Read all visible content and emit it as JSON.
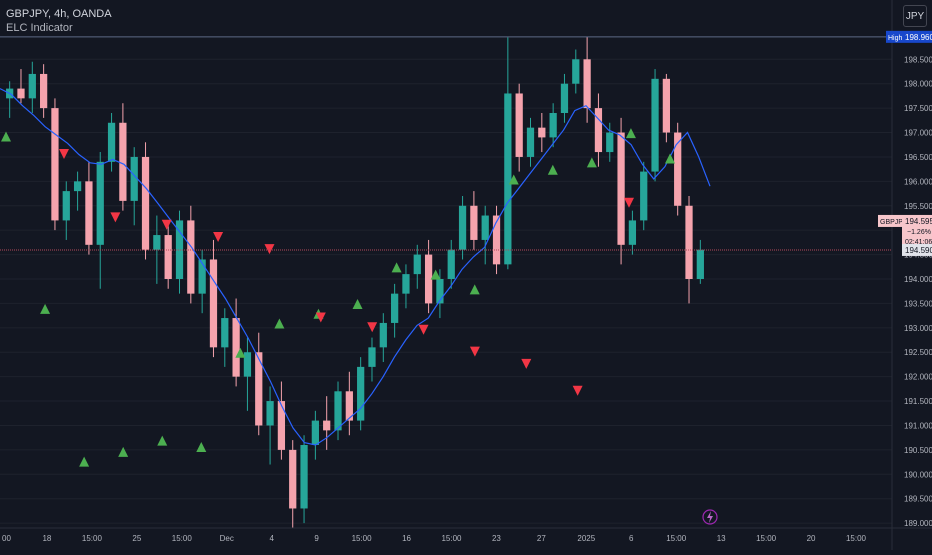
{
  "header": {
    "title": "GBPJPY, 4h, OANDA",
    "indicator": "ELC Indicator"
  },
  "currency_button": "JPY",
  "price_axis": {
    "labels": [
      "198.500",
      "198.000",
      "197.500",
      "197.000",
      "196.500",
      "196.000",
      "195.500",
      "195.000",
      "194.500",
      "194.000",
      "193.500",
      "193.000",
      "192.500",
      "192.000",
      "191.500",
      "191.000",
      "190.500",
      "190.000",
      "189.500",
      "189.000"
    ],
    "high_label": "High",
    "high_value": "198.960",
    "symbol_tag": "GBPJPY",
    "last_price": "194.595",
    "change": "−1.26%",
    "countdown": "02:41:06",
    "crosshair_price": "194.590"
  },
  "time_axis": {
    "labels": [
      "00",
      "18",
      "15:00",
      "25",
      "15:00",
      "Dec",
      "4",
      "9",
      "15:00",
      "16",
      "15:00",
      "23",
      "27",
      "2025",
      "6",
      "15:00",
      "13",
      "15:00",
      "20",
      "15:00"
    ]
  },
  "colors": {
    "background": "#131722",
    "bull_candle": "#26a69a",
    "bear_candle": "#f5a3ad",
    "ma_line": "#2962ff",
    "buy_marker": "#4caf50",
    "sell_marker": "#f23645",
    "high_line": "#5d6a86",
    "crosshair_line": "#b2485a"
  },
  "chart_data": {
    "type": "candlestick",
    "symbol": "GBPJPY",
    "timeframe": "4h",
    "exchange": "OANDA",
    "ylim": [
      188.9,
      199.1
    ],
    "y_ticks": [
      198.5,
      198.0,
      197.5,
      197.0,
      196.5,
      196.0,
      195.5,
      195.0,
      194.5,
      194.0,
      193.5,
      193.0,
      192.5,
      192.0,
      191.5,
      191.0,
      190.5,
      190.0,
      189.5,
      189.0
    ],
    "period_high": 198.96,
    "last_price": 194.595,
    "change_percent": -1.26,
    "series": [
      {
        "name": "ma",
        "values": [
          197.9,
          197.78,
          197.55,
          197.35,
          197.12,
          196.95,
          196.78,
          196.55,
          196.38,
          196.35,
          196.45,
          196.35,
          196.1,
          195.85,
          195.55,
          195.25,
          194.95,
          194.65,
          194.3,
          193.95,
          193.6,
          193.2,
          192.8,
          192.35,
          191.9,
          191.4,
          190.95,
          190.65,
          190.6,
          190.75,
          190.95,
          191.15,
          191.35,
          191.65,
          192.0,
          192.4,
          192.75,
          193.05,
          193.2,
          193.55,
          193.85,
          194.2,
          194.45,
          194.65,
          195.15,
          195.55,
          195.85,
          196.15,
          196.45,
          196.75,
          197.05,
          197.45,
          197.55,
          197.3,
          197.05,
          196.95,
          196.75,
          196.35,
          196.05,
          196.3,
          196.75,
          197.0,
          196.5,
          195.9
        ]
      },
      {
        "name": "buy_signals",
        "values": [
          196.98,
          193.45,
          190.32,
          190.52,
          190.75,
          190.62,
          192.55,
          193.15,
          193.35,
          193.55,
          194.3,
          194.15,
          193.85,
          196.1,
          196.3,
          196.45,
          197.05,
          196.53
        ]
      },
      {
        "name": "sell_signals",
        "values": [
          196.5,
          195.2,
          195.05,
          194.8,
          194.55,
          193.15,
          192.95,
          192.9,
          192.45,
          192.2,
          191.65,
          195.5
        ]
      }
    ],
    "candles": [
      [
        197.7,
        198.05,
        197.3,
        197.9
      ],
      [
        197.9,
        198.3,
        197.6,
        197.7
      ],
      [
        197.7,
        198.45,
        197.4,
        198.2
      ],
      [
        198.2,
        198.4,
        197.3,
        197.5
      ],
      [
        197.5,
        197.7,
        195.0,
        195.2
      ],
      [
        195.2,
        196.0,
        194.8,
        195.8
      ],
      [
        195.8,
        196.2,
        195.4,
        196.0
      ],
      [
        196.0,
        196.4,
        194.5,
        194.7
      ],
      [
        194.7,
        196.6,
        193.8,
        196.4
      ],
      [
        196.4,
        197.4,
        196.2,
        197.2
      ],
      [
        197.2,
        197.6,
        195.4,
        195.6
      ],
      [
        195.6,
        196.7,
        195.1,
        196.5
      ],
      [
        196.5,
        196.8,
        194.4,
        194.6
      ],
      [
        194.6,
        195.3,
        193.9,
        194.9
      ],
      [
        194.9,
        195.1,
        193.8,
        194.0
      ],
      [
        194.0,
        195.4,
        193.7,
        195.2
      ],
      [
        195.2,
        195.5,
        193.5,
        193.7
      ],
      [
        193.7,
        194.6,
        193.3,
        194.4
      ],
      [
        194.4,
        194.8,
        192.4,
        192.6
      ],
      [
        192.6,
        193.4,
        192.2,
        193.2
      ],
      [
        193.2,
        193.6,
        191.8,
        192.0
      ],
      [
        192.0,
        192.8,
        191.3,
        192.5
      ],
      [
        192.5,
        192.9,
        190.8,
        191.0
      ],
      [
        191.0,
        191.8,
        190.2,
        191.5
      ],
      [
        191.5,
        191.9,
        190.3,
        190.5
      ],
      [
        190.5,
        190.7,
        188.9,
        189.3
      ],
      [
        189.3,
        190.8,
        189.0,
        190.6
      ],
      [
        190.6,
        191.3,
        190.3,
        191.1
      ],
      [
        191.1,
        191.6,
        190.5,
        190.9
      ],
      [
        190.9,
        191.9,
        190.7,
        191.7
      ],
      [
        191.7,
        192.1,
        190.8,
        191.1
      ],
      [
        191.1,
        192.4,
        190.9,
        192.2
      ],
      [
        192.2,
        192.8,
        191.9,
        192.6
      ],
      [
        192.6,
        193.3,
        192.3,
        193.1
      ],
      [
        193.1,
        193.9,
        192.8,
        193.7
      ],
      [
        193.7,
        194.3,
        193.4,
        194.1
      ],
      [
        194.1,
        194.7,
        193.8,
        194.5
      ],
      [
        194.5,
        194.8,
        193.3,
        193.5
      ],
      [
        193.5,
        194.2,
        193.2,
        194.0
      ],
      [
        194.0,
        194.8,
        193.8,
        194.6
      ],
      [
        194.6,
        195.7,
        194.4,
        195.5
      ],
      [
        195.5,
        195.8,
        194.6,
        194.8
      ],
      [
        194.8,
        195.5,
        194.3,
        195.3
      ],
      [
        195.3,
        195.5,
        194.1,
        194.3
      ],
      [
        194.3,
        198.95,
        194.2,
        197.8
      ],
      [
        197.8,
        198.0,
        196.2,
        196.5
      ],
      [
        196.5,
        197.3,
        196.3,
        197.1
      ],
      [
        197.1,
        197.4,
        196.6,
        196.9
      ],
      [
        196.9,
        197.6,
        196.7,
        197.4
      ],
      [
        197.4,
        198.2,
        197.2,
        198.0
      ],
      [
        198.0,
        198.7,
        197.8,
        198.5
      ],
      [
        198.5,
        198.96,
        197.2,
        197.5
      ],
      [
        197.5,
        197.8,
        196.3,
        196.6
      ],
      [
        196.6,
        197.2,
        196.4,
        197.0
      ],
      [
        197.0,
        197.3,
        194.3,
        194.7
      ],
      [
        194.7,
        195.4,
        194.5,
        195.2
      ],
      [
        195.2,
        196.4,
        195.0,
        196.2
      ],
      [
        196.2,
        198.3,
        196.0,
        198.1
      ],
      [
        198.1,
        198.2,
        196.8,
        197.0
      ],
      [
        197.0,
        197.2,
        195.3,
        195.5
      ],
      [
        195.5,
        195.7,
        193.5,
        194.0
      ],
      [
        194.0,
        194.8,
        193.9,
        194.6
      ]
    ]
  }
}
